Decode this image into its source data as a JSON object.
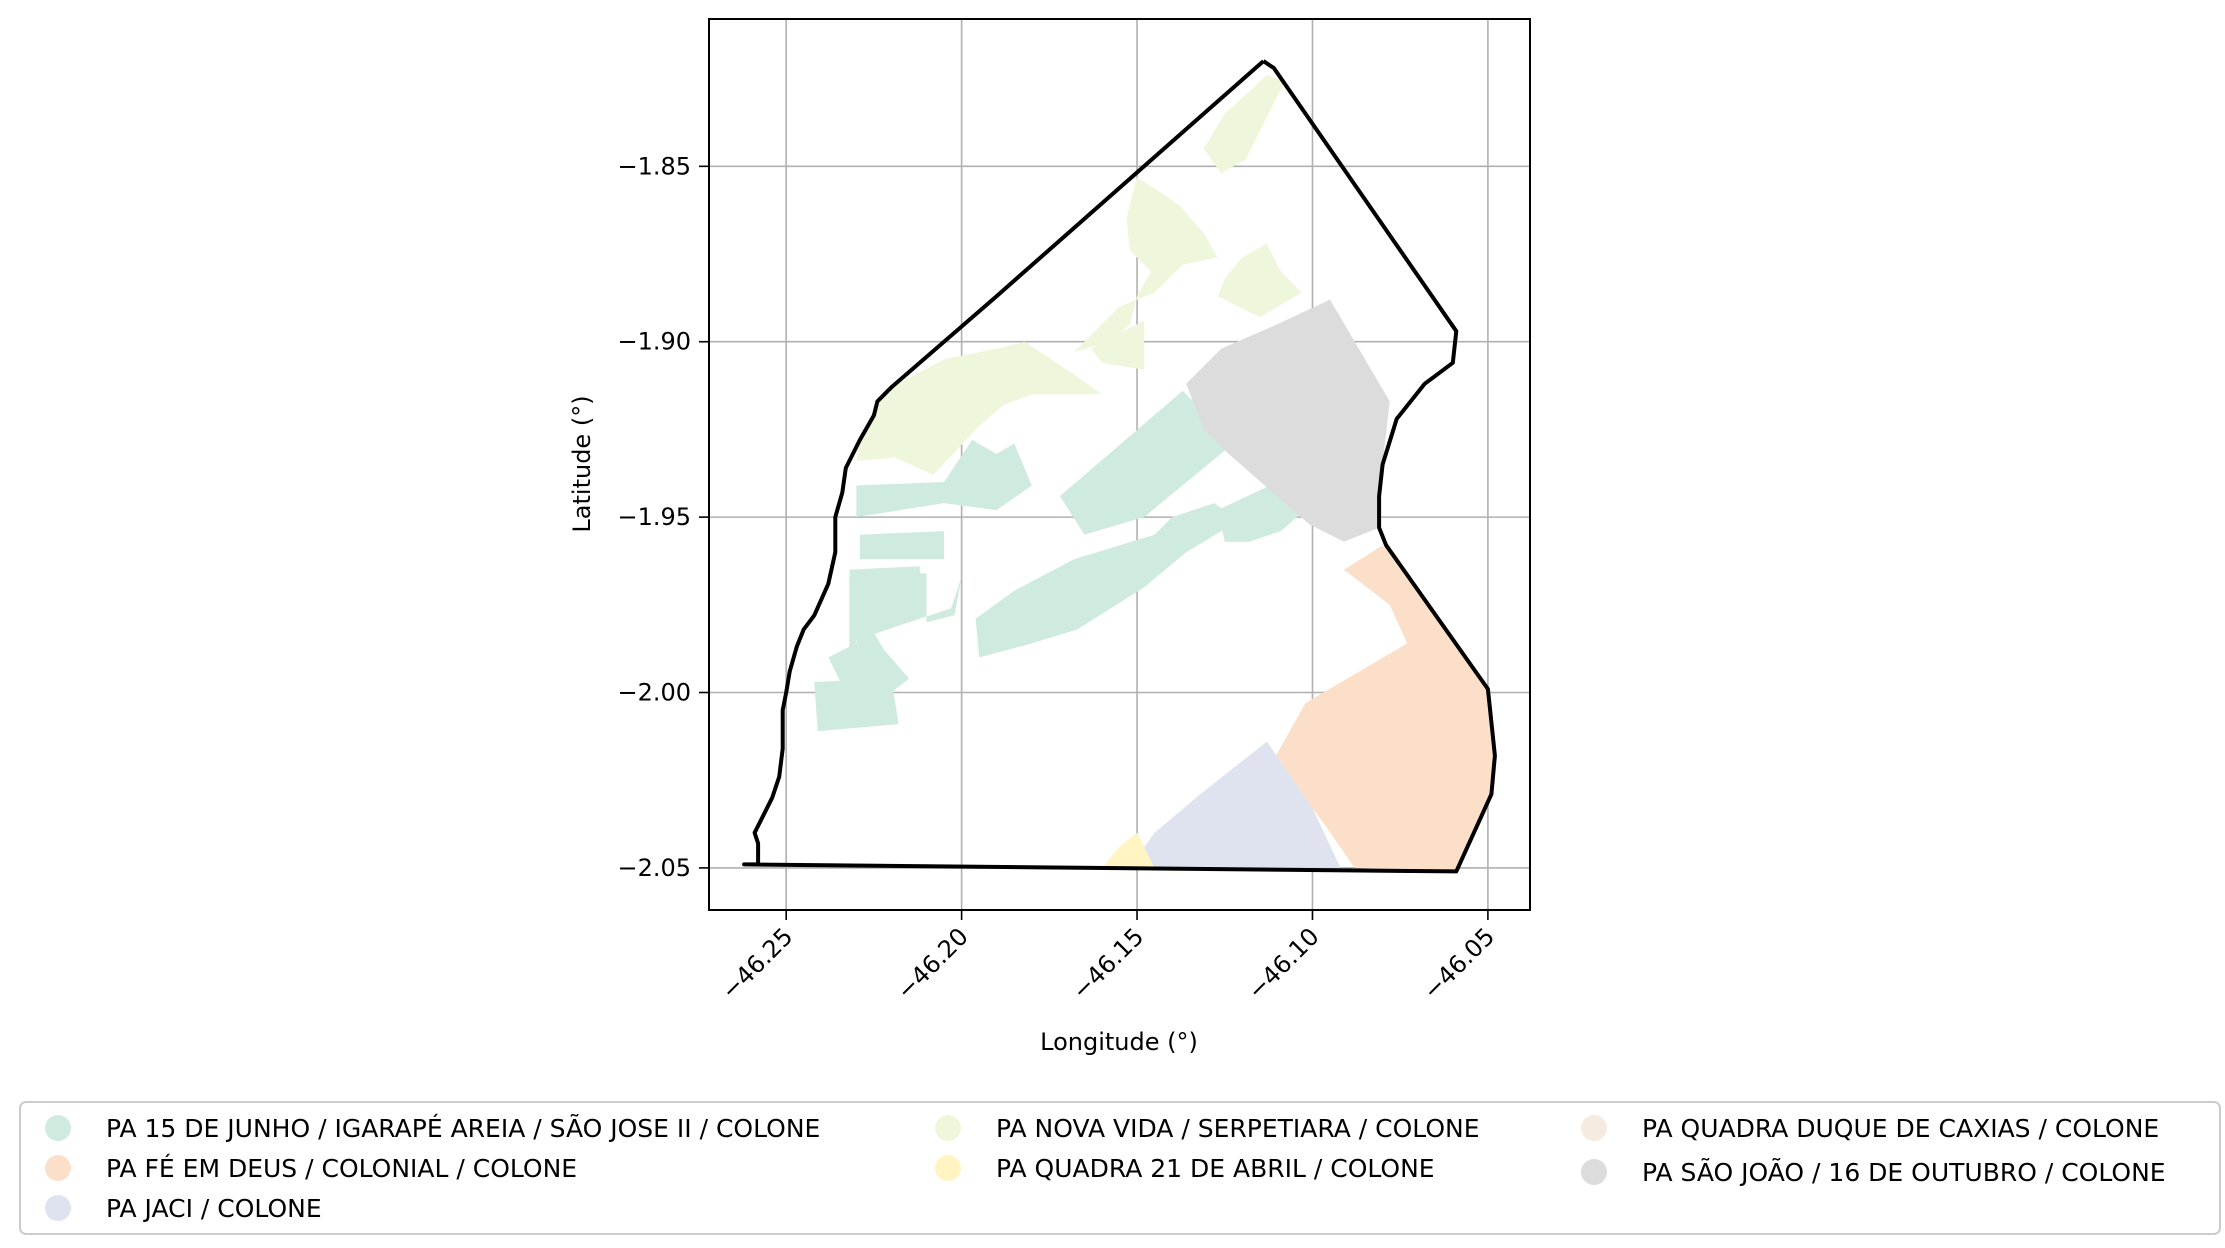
{
  "map": {
    "type": "choropleth",
    "xlabel": "Longitude (°)",
    "ylabel": "Latitude (°)",
    "xlim": [
      -46.272,
      -46.038
    ],
    "ylim": [
      -2.062,
      -1.808
    ],
    "x_ticks": [
      -46.25,
      -46.2,
      -46.15,
      -46.1,
      -46.05
    ],
    "x_tick_labels": [
      "−46.25",
      "−46.20",
      "−46.15",
      "−46.10",
      "−46.05"
    ],
    "y_ticks": [
      -1.85,
      -1.9,
      -1.95,
      -2.0,
      -2.05
    ],
    "y_tick_labels": [
      "−1.85",
      "−1.90",
      "−1.95",
      "−2.00",
      "−2.05"
    ],
    "grid": true,
    "boundary": {
      "name": "study-area-boundary",
      "color": "#000000",
      "coords": [
        [
          -46.114,
          -1.82
        ],
        [
          -46.111,
          -1.822
        ],
        [
          -46.059,
          -1.897
        ],
        [
          -46.06,
          -1.906
        ],
        [
          -46.068,
          -1.912
        ],
        [
          -46.076,
          -1.922
        ],
        [
          -46.08,
          -1.935
        ],
        [
          -46.081,
          -1.944
        ],
        [
          -46.081,
          -1.953
        ],
        [
          -46.079,
          -1.958
        ],
        [
          -46.05,
          -1.999
        ],
        [
          -46.048,
          -2.018
        ],
        [
          -46.049,
          -2.029
        ],
        [
          -46.059,
          -2.051
        ],
        [
          -46.262,
          -2.049
        ],
        [
          -46.258,
          -2.049
        ],
        [
          -46.258,
          -2.043
        ],
        [
          -46.259,
          -2.04
        ],
        [
          -46.254,
          -2.03
        ],
        [
          -46.252,
          -2.024
        ],
        [
          -46.251,
          -2.016
        ],
        [
          -46.251,
          -2.005
        ],
        [
          -46.25,
          -2.0
        ],
        [
          -46.249,
          -1.994
        ],
        [
          -46.247,
          -1.987
        ],
        [
          -46.245,
          -1.982
        ],
        [
          -46.242,
          -1.978
        ],
        [
          -46.238,
          -1.969
        ],
        [
          -46.236,
          -1.96
        ],
        [
          -46.236,
          -1.95
        ],
        [
          -46.234,
          -1.943
        ],
        [
          -46.233,
          -1.936
        ],
        [
          -46.229,
          -1.928
        ],
        [
          -46.225,
          -1.921
        ],
        [
          -46.224,
          -1.917
        ],
        [
          -46.222,
          -1.915
        ],
        [
          -46.22,
          -1.913
        ],
        [
          -46.19,
          -1.887
        ],
        [
          -46.114,
          -1.82
        ]
      ]
    },
    "zones": [
      {
        "name": "PA 15 DE JUNHO / IGARAPÉ AREIA / SÃO JOSE II / COLONE",
        "color": "#cfeadf",
        "polygons": [
          [
            [
              -46.23,
              -1.941
            ],
            [
              -46.205,
              -1.94
            ],
            [
              -46.197,
              -1.928
            ],
            [
              -46.19,
              -1.932
            ],
            [
              -46.185,
              -1.929
            ],
            [
              -46.18,
              -1.941
            ],
            [
              -46.19,
              -1.948
            ],
            [
              -46.205,
              -1.946
            ],
            [
              -46.23,
              -1.95
            ]
          ],
          [
            [
              -46.229,
              -1.955
            ],
            [
              -46.205,
              -1.954
            ],
            [
              -46.205,
              -1.962
            ],
            [
              -46.229,
              -1.962
            ]
          ],
          [
            [
              -46.232,
              -1.967
            ],
            [
              -46.21,
              -1.966
            ],
            [
              -46.21,
              -1.98
            ],
            [
              -46.202,
              -1.978
            ],
            [
              -46.2,
              -1.967
            ],
            [
              -46.203,
              -1.976
            ],
            [
              -46.23,
              -1.985
            ],
            [
              -46.232,
              -1.995
            ]
          ],
          [
            [
              -46.232,
              -1.965
            ],
            [
              -46.212,
              -1.964
            ],
            [
              -46.211,
              -1.976
            ],
            [
              -46.229,
              -1.976
            ],
            [
              -46.23,
              -1.986
            ],
            [
              -46.238,
              -1.99
            ],
            [
              -46.234,
              -1.998
            ],
            [
              -46.24,
              -2.002
            ],
            [
              -46.22,
              -2.0
            ],
            [
              -46.215,
              -1.996
            ],
            [
              -46.222,
              -1.988
            ],
            [
              -46.231,
              -1.973
            ]
          ],
          [
            [
              -46.242,
              -1.997
            ],
            [
              -46.22,
              -1.996
            ],
            [
              -46.218,
              -2.009
            ],
            [
              -46.241,
              -2.011
            ]
          ],
          [
            [
              -46.196,
              -1.979
            ],
            [
              -46.185,
              -1.971
            ],
            [
              -46.168,
              -1.962
            ],
            [
              -46.145,
              -1.955
            ],
            [
              -46.14,
              -1.95
            ],
            [
              -46.128,
              -1.946
            ],
            [
              -46.121,
              -1.951
            ],
            [
              -46.136,
              -1.96
            ],
            [
              -46.148,
              -1.97
            ],
            [
              -46.167,
              -1.982
            ],
            [
              -46.18,
              -1.986
            ],
            [
              -46.195,
              -1.99
            ]
          ],
          [
            [
              -46.172,
              -1.944
            ],
            [
              -46.137,
              -1.914
            ],
            [
              -46.13,
              -1.921
            ],
            [
              -46.125,
              -1.931
            ],
            [
              -46.148,
              -1.95
            ],
            [
              -46.165,
              -1.955
            ]
          ],
          [
            [
              -46.127,
              -1.948
            ],
            [
              -46.11,
              -1.94
            ],
            [
              -46.101,
              -1.947
            ],
            [
              -46.109,
              -1.954
            ],
            [
              -46.118,
              -1.957
            ],
            [
              -46.125,
              -1.957
            ]
          ]
        ]
      },
      {
        "name": "PA FÉ EM DEUS / COLONIAL / COLONE",
        "color": "#fcdfc9",
        "polygons": [
          [
            [
              -46.08,
              -1.958
            ],
            [
              -46.079,
              -1.959
            ],
            [
              -46.05,
              -1.999
            ],
            [
              -46.048,
              -2.018
            ],
            [
              -46.049,
              -2.029
            ],
            [
              -46.059,
              -2.051
            ],
            [
              -46.088,
              -2.05
            ],
            [
              -46.097,
              -2.037
            ],
            [
              -46.111,
              -2.019
            ],
            [
              -46.102,
              -2.003
            ],
            [
              -46.085,
              -1.993
            ],
            [
              -46.073,
              -1.986
            ],
            [
              -46.078,
              -1.975
            ],
            [
              -46.091,
              -1.965
            ]
          ]
        ]
      },
      {
        "name": "PA JACI / COLONE",
        "color": "#dfe3f0",
        "polygons": [
          [
            [
              -46.113,
              -2.014
            ],
            [
              -46.1,
              -2.033
            ],
            [
              -46.092,
              -2.05
            ],
            [
              -46.145,
              -2.05
            ],
            [
              -46.15,
              -2.047
            ],
            [
              -46.145,
              -2.04
            ],
            [
              -46.132,
              -2.029
            ]
          ]
        ]
      },
      {
        "name": "PA NOVA VIDA / SERPETIARA / COLONE",
        "color": "#eef7db",
        "polygons": [
          [
            [
              -46.108,
              -1.826
            ],
            [
              -46.113,
              -1.824
            ],
            [
              -46.125,
              -1.835
            ],
            [
              -46.131,
              -1.845
            ],
            [
              -46.126,
              -1.852
            ],
            [
              -46.119,
              -1.848
            ]
          ],
          [
            [
              -46.15,
              -1.853
            ],
            [
              -46.138,
              -1.861
            ],
            [
              -46.131,
              -1.869
            ],
            [
              -46.127,
              -1.876
            ],
            [
              -46.137,
              -1.878
            ],
            [
              -46.145,
              -1.886
            ],
            [
              -46.155,
              -1.89
            ],
            [
              -46.168,
              -1.903
            ],
            [
              -46.158,
              -1.9
            ],
            [
              -46.152,
              -1.895
            ],
            [
              -46.15,
              -1.887
            ],
            [
              -46.146,
              -1.88
            ],
            [
              -46.152,
              -1.874
            ],
            [
              -46.153,
              -1.865
            ]
          ],
          [
            [
              -46.113,
              -1.872
            ],
            [
              -46.12,
              -1.876
            ],
            [
              -46.125,
              -1.882
            ],
            [
              -46.127,
              -1.887
            ],
            [
              -46.115,
              -1.893
            ],
            [
              -46.103,
              -1.886
            ],
            [
              -46.109,
              -1.88
            ]
          ],
          [
            [
              -46.229,
              -1.928
            ],
            [
              -46.225,
              -1.921
            ],
            [
              -46.224,
              -1.917
            ],
            [
              -46.22,
              -1.913
            ],
            [
              -46.205,
              -1.905
            ],
            [
              -46.19,
              -1.902
            ],
            [
              -46.182,
              -1.9
            ],
            [
              -46.173,
              -1.906
            ],
            [
              -46.167,
              -1.91
            ],
            [
              -46.16,
              -1.915
            ],
            [
              -46.17,
              -1.915
            ],
            [
              -46.18,
              -1.915
            ],
            [
              -46.188,
              -1.918
            ],
            [
              -46.195,
              -1.924
            ],
            [
              -46.208,
              -1.938
            ],
            [
              -46.219,
              -1.933
            ],
            [
              -46.23,
              -1.934
            ]
          ],
          [
            [
              -46.148,
              -1.894
            ],
            [
              -46.158,
              -1.899
            ],
            [
              -46.163,
              -1.902
            ],
            [
              -46.16,
              -1.906
            ],
            [
              -46.148,
              -1.908
            ]
          ]
        ]
      },
      {
        "name": "PA QUADRA 21 DE ABRIL / COLONE",
        "color": "#fff4c2",
        "polygons": [
          [
            [
              -46.16,
              -2.05
            ],
            [
              -46.155,
              -2.044
            ],
            [
              -46.15,
              -2.04
            ],
            [
              -46.145,
              -2.05
            ]
          ]
        ]
      },
      {
        "name": "PA QUADRA DUQUE DE CAXIAS / COLONE",
        "color": "#f5ebe0",
        "polygons": []
      },
      {
        "name": "PA SÃO JOÃO / 16 DE OUTUBRO / COLONE",
        "color": "#dcdcdc",
        "polygons": [
          [
            [
              -46.095,
              -1.888
            ],
            [
              -46.078,
              -1.917
            ],
            [
              -46.08,
              -1.935
            ],
            [
              -46.081,
              -1.944
            ],
            [
              -46.081,
              -1.953
            ],
            [
              -46.091,
              -1.957
            ],
            [
              -46.101,
              -1.952
            ],
            [
              -46.125,
              -1.931
            ],
            [
              -46.131,
              -1.925
            ],
            [
              -46.136,
              -1.912
            ],
            [
              -46.126,
              -1.902
            ],
            [
              -46.11,
              -1.895
            ]
          ]
        ]
      }
    ]
  },
  "legend": {
    "position": "bottom",
    "columns": 3,
    "column_order": [
      [
        "PA 15 DE JUNHO / IGARAPÉ AREIA / SÃO JOSE II / COLONE",
        "PA FÉ EM DEUS / COLONIAL / COLONE",
        "PA JACI / COLONE"
      ],
      [
        "PA NOVA VIDA / SERPETIARA / COLONE",
        "PA QUADRA 21 DE ABRIL / COLONE"
      ],
      [
        "PA QUADRA DUQUE DE CAXIAS / COLONE",
        "PA SÃO JOÃO / 16 DE OUTUBRO / COLONE"
      ]
    ]
  }
}
